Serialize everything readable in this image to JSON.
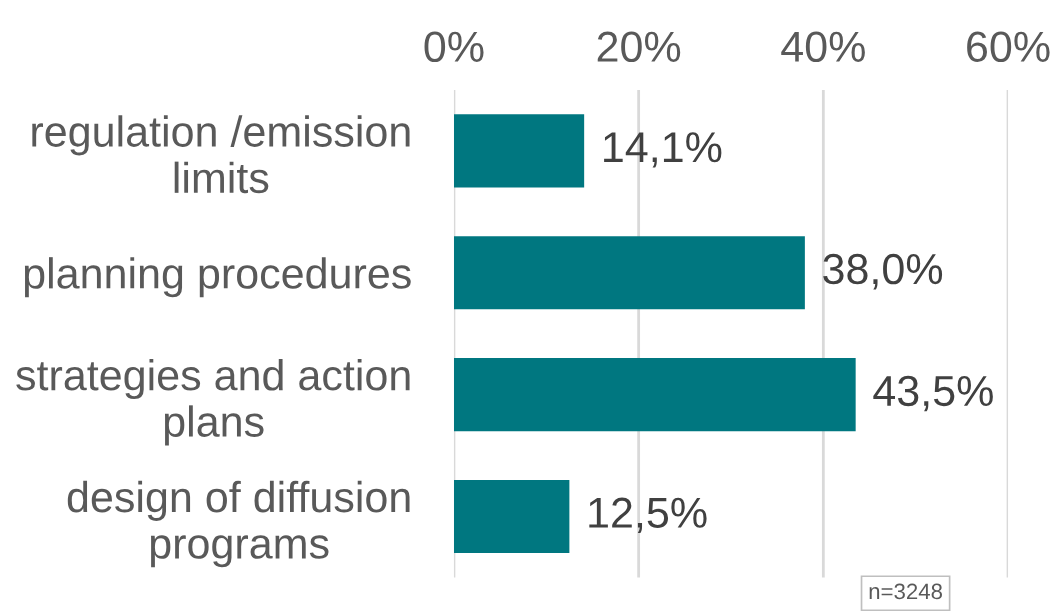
{
  "chart_data": {
    "type": "bar",
    "orientation": "horizontal",
    "categories": [
      "regulation /emission limits",
      "planning procedures",
      "strategies and action plans",
      "design of diffusion programs"
    ],
    "values": [
      14.1,
      38.0,
      43.5,
      12.5
    ],
    "color": "#007780",
    "value_labels": [
      "14,1%",
      "38,0%",
      "43,5%",
      "12,5%"
    ],
    "xlim": [
      0,
      60
    ],
    "xticks": [
      {
        "value": 0,
        "label": "0%"
      },
      {
        "value": 20,
        "label": "20%"
      },
      {
        "value": 40,
        "label": "40%"
      },
      {
        "value": 60,
        "label": "60%"
      }
    ],
    "grid": "x",
    "annotations": [
      "n=3248"
    ]
  }
}
